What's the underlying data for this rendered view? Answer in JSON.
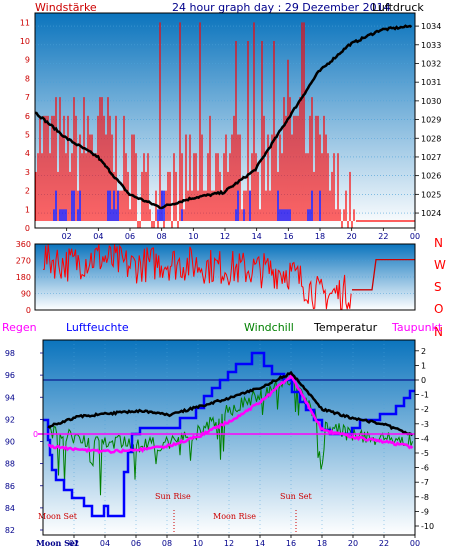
{
  "panel1": {
    "left_label": "Windstärke",
    "title": "24 hour graph day : 29 Dezember 2014",
    "right_label": "Luftdruck",
    "left_ticks": [
      "0",
      "1",
      "2",
      "3",
      "4",
      "5",
      "6",
      "7",
      "8",
      "9",
      "10",
      "11"
    ],
    "right_ticks": [
      "1024",
      "1025",
      "1026",
      "1027",
      "1028",
      "1029",
      "1030",
      "1031",
      "1032",
      "1033",
      "1034"
    ],
    "x_ticks": [
      "02",
      "04",
      "06",
      "08",
      "10",
      "12",
      "14",
      "16",
      "18",
      "20",
      "22",
      "00"
    ],
    "colors": {
      "wind": "#ff0000",
      "gust_blue": "#0000ff",
      "pressure": "#000000",
      "bg_top": "#0e7ac0",
      "bg_bottom": "#ffffff"
    }
  },
  "panel2": {
    "left_ticks": [
      "0",
      "90",
      "180",
      "270",
      "360"
    ],
    "right_labels": [
      "N",
      "W",
      "S",
      "O",
      "N"
    ],
    "colors": {
      "direction": "#ff0000",
      "avg": "#ff0000"
    }
  },
  "panel3": {
    "labels": {
      "regen": "Regen",
      "luftfeuchte": "Luftfeuchte",
      "windchill": "Windchill",
      "temperatur": "Temperatur",
      "taupunkt": "Taupunkt"
    },
    "left_ticks": [
      "82",
      "84",
      "86",
      "88",
      "90",
      "92",
      "94",
      "96",
      "98"
    ],
    "right_ticks": [
      "2",
      "1",
      "0",
      "-1",
      "-2",
      "-3",
      "-4",
      "-5",
      "-6",
      "-7",
      "-8",
      "-9",
      "-10"
    ],
    "zero_label": "0",
    "x_ticks": [
      "02",
      "04",
      "06",
      "08",
      "10",
      "12",
      "14",
      "16",
      "18",
      "20",
      "22",
      "00"
    ],
    "annotations": {
      "moon_set": "Moon Set",
      "sun_rise": "Sun Rise",
      "moon_rise": "Moon Rise",
      "sun_set": "Sun Set",
      "moon_set_bottom": "Moon Set"
    },
    "colors": {
      "regen": "#ff00ff",
      "luftfeuchte": "#0000ff",
      "windchill": "#008000",
      "temperatur": "#000000",
      "taupunkt": "#ff00ff",
      "annotation": "#cc0000"
    }
  },
  "chart_data": [
    {
      "type": "line",
      "title": "24 hour graph day : 29 Dezember 2014",
      "xlabel": "",
      "ylabel": "Windstärke",
      "y2label": "Luftdruck",
      "x": [
        "00",
        "02",
        "04",
        "06",
        "08",
        "10",
        "12",
        "14",
        "16",
        "18",
        "20",
        "22",
        "00"
      ],
      "ylim": [
        0,
        11.5
      ],
      "y2lim": [
        1023.2,
        1034.7
      ],
      "series": [
        {
          "name": "Luftdruck",
          "axis": "right",
          "values": [
            1029.4,
            1028.0,
            1027.0,
            1025.0,
            1024.3,
            1024.8,
            1025.1,
            1026.3,
            1028.9,
            1031.5,
            1033.0,
            1033.8,
            1034.0
          ]
        },
        {
          "name": "Windstärke",
          "axis": "left",
          "values": [
            5,
            4,
            5,
            3,
            1,
            3,
            4,
            3,
            6,
            4,
            0,
            0,
            0
          ]
        }
      ]
    },
    {
      "type": "line",
      "title": "",
      "ylabel": "",
      "x": [
        "00",
        "02",
        "04",
        "06",
        "08",
        "10",
        "12",
        "14",
        "16",
        "18",
        "20",
        "22",
        "00"
      ],
      "ylim": [
        0,
        360
      ],
      "y_tick_labels": [
        "0",
        "90",
        "180",
        "270",
        "360"
      ],
      "y2_labels": [
        "N",
        "W",
        "S",
        "O",
        "N"
      ],
      "series": [
        {
          "values": [
            300,
            250,
            290,
            240,
            260,
            250,
            230,
            220,
            210,
            80,
            100,
            120,
            275
          ]
        }
      ]
    },
    {
      "type": "line",
      "title": "",
      "ylabel": "Luftfeuchte",
      "y2label": "Temperatur",
      "x": [
        "00",
        "02",
        "04",
        "06",
        "08",
        "10",
        "12",
        "14",
        "16",
        "18",
        "20",
        "22",
        "00"
      ],
      "ylim": [
        82,
        99
      ],
      "y2lim": [
        -10,
        2.5
      ],
      "series": [
        {
          "name": "Luftfeuchte",
          "axis": "left",
          "values": [
            88,
            85,
            83,
            83,
            91,
            93,
            93,
            96,
            98,
            94,
            92,
            92,
            93
          ]
        },
        {
          "name": "Temperatur",
          "axis": "right",
          "values": [
            -3.2,
            -2.5,
            -2.3,
            -2.1,
            -2.4,
            -1.8,
            -1.2,
            -0.5,
            0.5,
            -2.0,
            -2.6,
            -3.0,
            -3.8
          ]
        },
        {
          "name": "Windchill",
          "axis": "right",
          "values": [
            -3.5,
            -4.0,
            -4.2,
            -4.5,
            -4.3,
            -3.5,
            -2.0,
            -1.0,
            0.0,
            -3.0,
            -3.8,
            -4.0,
            -4.2
          ]
        },
        {
          "name": "Taupunkt",
          "axis": "right",
          "values": [
            -4.5,
            -4.8,
            -4.9,
            -4.8,
            -4.5,
            -3.8,
            -2.8,
            -1.5,
            0.3,
            -3.4,
            -3.9,
            -4.2,
            -4.6
          ]
        }
      ],
      "annotations": [
        "Moon Set",
        "Sun Rise",
        "Moon Rise",
        "Sun Set",
        "Moon Set"
      ]
    }
  ]
}
